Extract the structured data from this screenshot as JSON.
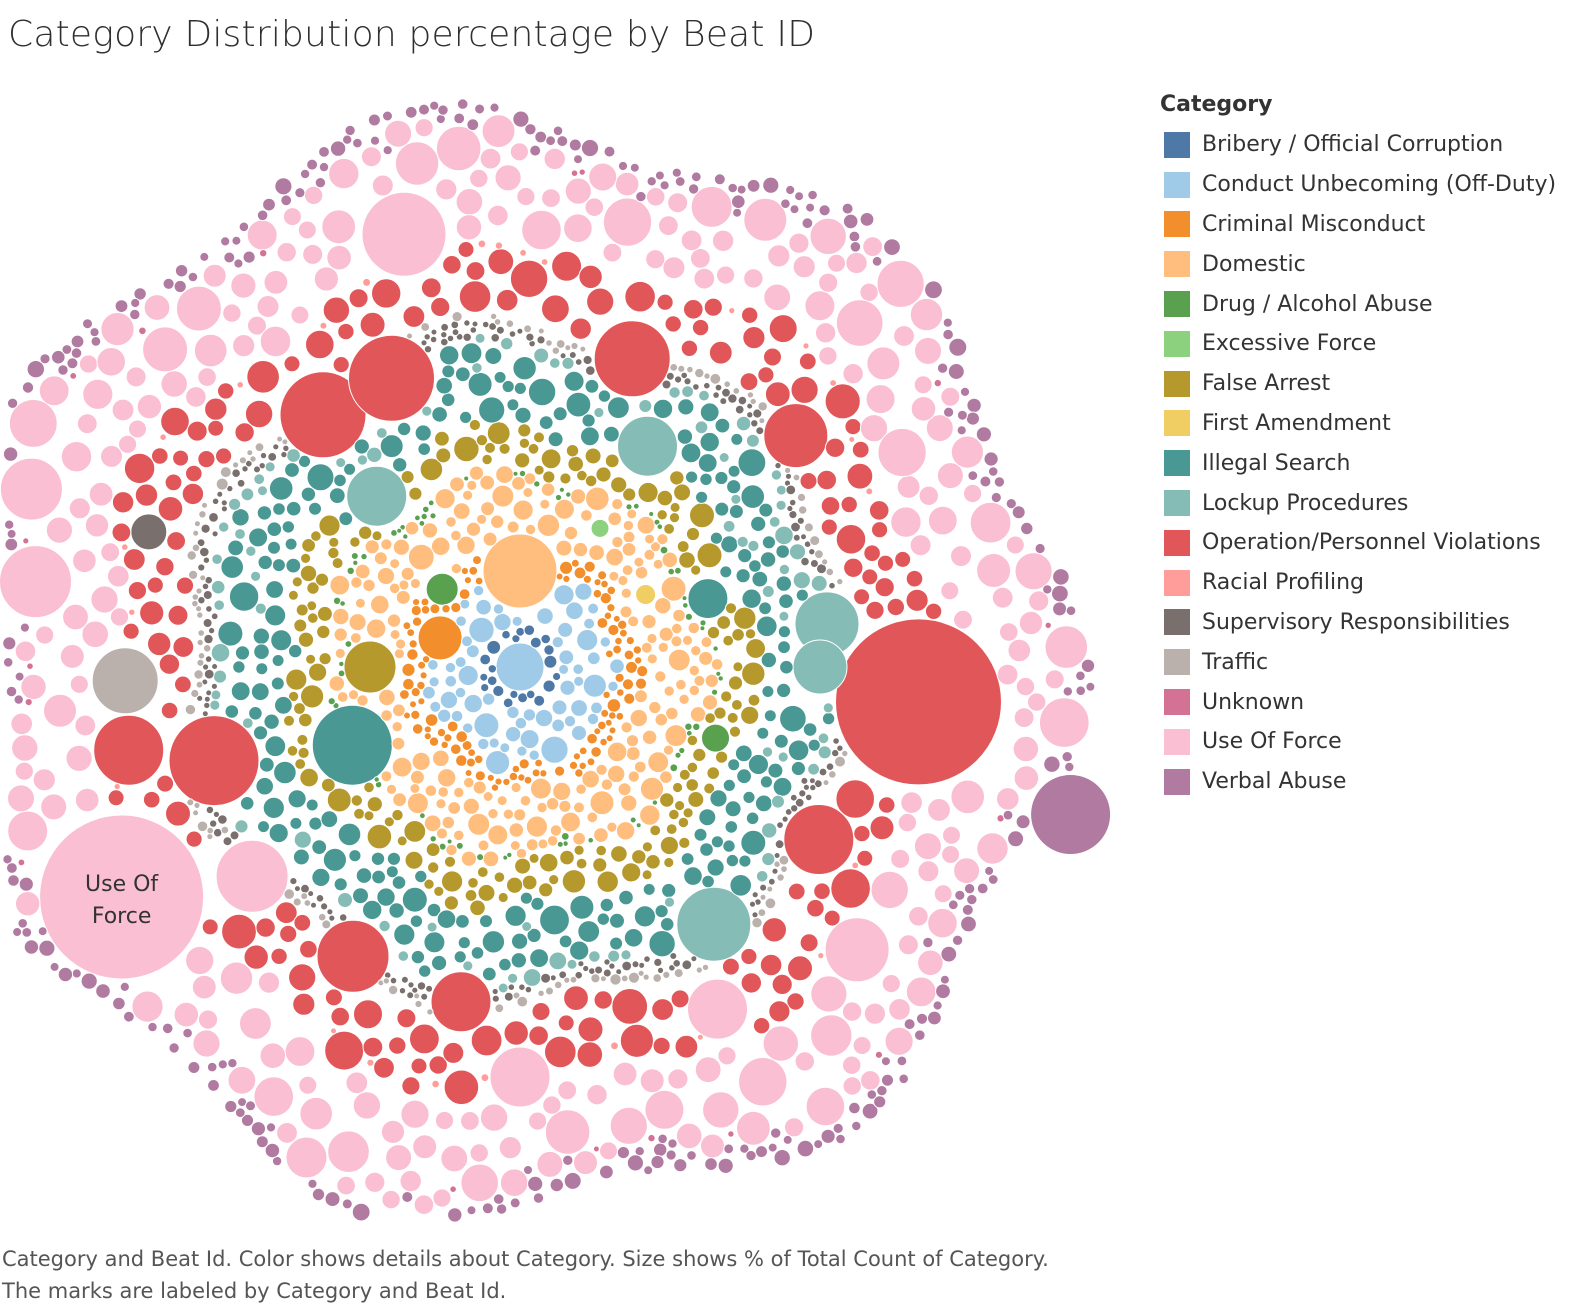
{
  "title": "Category Distribution percentage by Beat ID",
  "legend": {
    "title": "Category",
    "items": [
      {
        "label": "Bribery / Official Corruption",
        "color": "#4e79a7"
      },
      {
        "label": "Conduct Unbecoming (Off-Duty)",
        "color": "#a0cbe8"
      },
      {
        "label": "Criminal Misconduct",
        "color": "#f28e2b"
      },
      {
        "label": "Domestic",
        "color": "#ffbe7d"
      },
      {
        "label": "Drug / Alcohol Abuse",
        "color": "#59a14f"
      },
      {
        "label": "Excessive Force",
        "color": "#8cd17d"
      },
      {
        "label": "False Arrest",
        "color": "#b6992d"
      },
      {
        "label": "First Amendment",
        "color": "#f1ce63"
      },
      {
        "label": "Illegal Search",
        "color": "#499894"
      },
      {
        "label": "Lockup Procedures",
        "color": "#86bcb6"
      },
      {
        "label": "Operation/Personnel Violations",
        "color": "#e15759"
      },
      {
        "label": "Racial Profiling",
        "color": "#ff9d9a"
      },
      {
        "label": "Supervisory Responsibilities",
        "color": "#79706e"
      },
      {
        "label": "Traffic",
        "color": "#bab0ac"
      },
      {
        "label": "Unknown",
        "color": "#d37295"
      },
      {
        "label": "Use Of Force",
        "color": "#fabfd2"
      },
      {
        "label": "Verbal Abuse",
        "color": "#b07aa1"
      }
    ]
  },
  "caption": [
    "Category and Beat Id.  Color shows details about Category.  Size shows % of Total Count of Category.",
    "The marks are labeled by Category and Beat Id."
  ],
  "chart_data": {
    "type": "packed-bubble",
    "size_measure": "% of Total Count of Category",
    "color_dimension": "Category",
    "detail_dimension": "Beat Id",
    "label_fields": [
      "Category",
      "Beat Id"
    ],
    "layout": "concentric rings by category, largest category outermost",
    "ring_order_inner_to_outer": [
      "Bribery / Official Corruption",
      "Conduct Unbecoming (Off-Duty)",
      "Criminal Misconduct",
      "Domestic",
      "Drug / Alcohol Abuse",
      "Excessive Force",
      "First Amendment",
      "False Arrest",
      "Illegal Search",
      "Lockup Procedures",
      "Supervisory Responsibilities",
      "Traffic",
      "Operation/Personnel Violations",
      "Racial Profiling",
      "Unknown",
      "Use Of Force",
      "Verbal Abuse"
    ],
    "visible_labels": [
      {
        "category": "Use Of Force",
        "text": "Use Of Force",
        "lines": [
          "Use Of",
          "Force"
        ]
      }
    ]
  }
}
